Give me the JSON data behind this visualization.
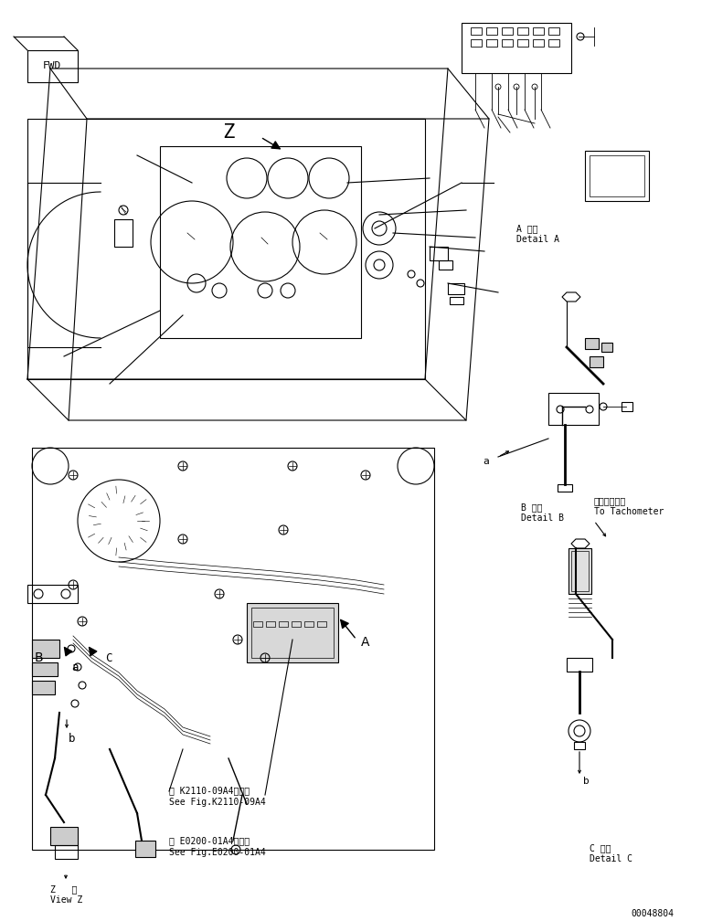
{
  "bg_color": "#ffffff",
  "line_color": "#000000",
  "fig_width": 7.79,
  "fig_height": 10.08,
  "part_number": "00048804",
  "labels": {
    "fwd": "FWD",
    "z_label": "Z",
    "view_z_jp": "Z   視",
    "view_z_en": "View Z",
    "detail_a_jp": "A 詳細",
    "detail_a_en": "Detail A",
    "detail_b_jp": "B 詳細",
    "detail_b_en": "Detail B",
    "detail_c_jp": "C 詳細",
    "detail_c_en": "Detail C",
    "tachometer_jp": "タコメータへ",
    "tachometer_en": "To Tachometer",
    "ref_k2110_jp": "第 K2110-09A4図参照",
    "ref_k2110_en": "See Fig.K2110-09A4",
    "ref_e0200_jp": "第 E0200-01A4図参照",
    "ref_e0200_en": "See Fig.E0200-01A4",
    "label_A": "A",
    "label_B": "B",
    "label_C": "C",
    "label_a": "a",
    "label_b": "b",
    "label_a2": "a"
  }
}
